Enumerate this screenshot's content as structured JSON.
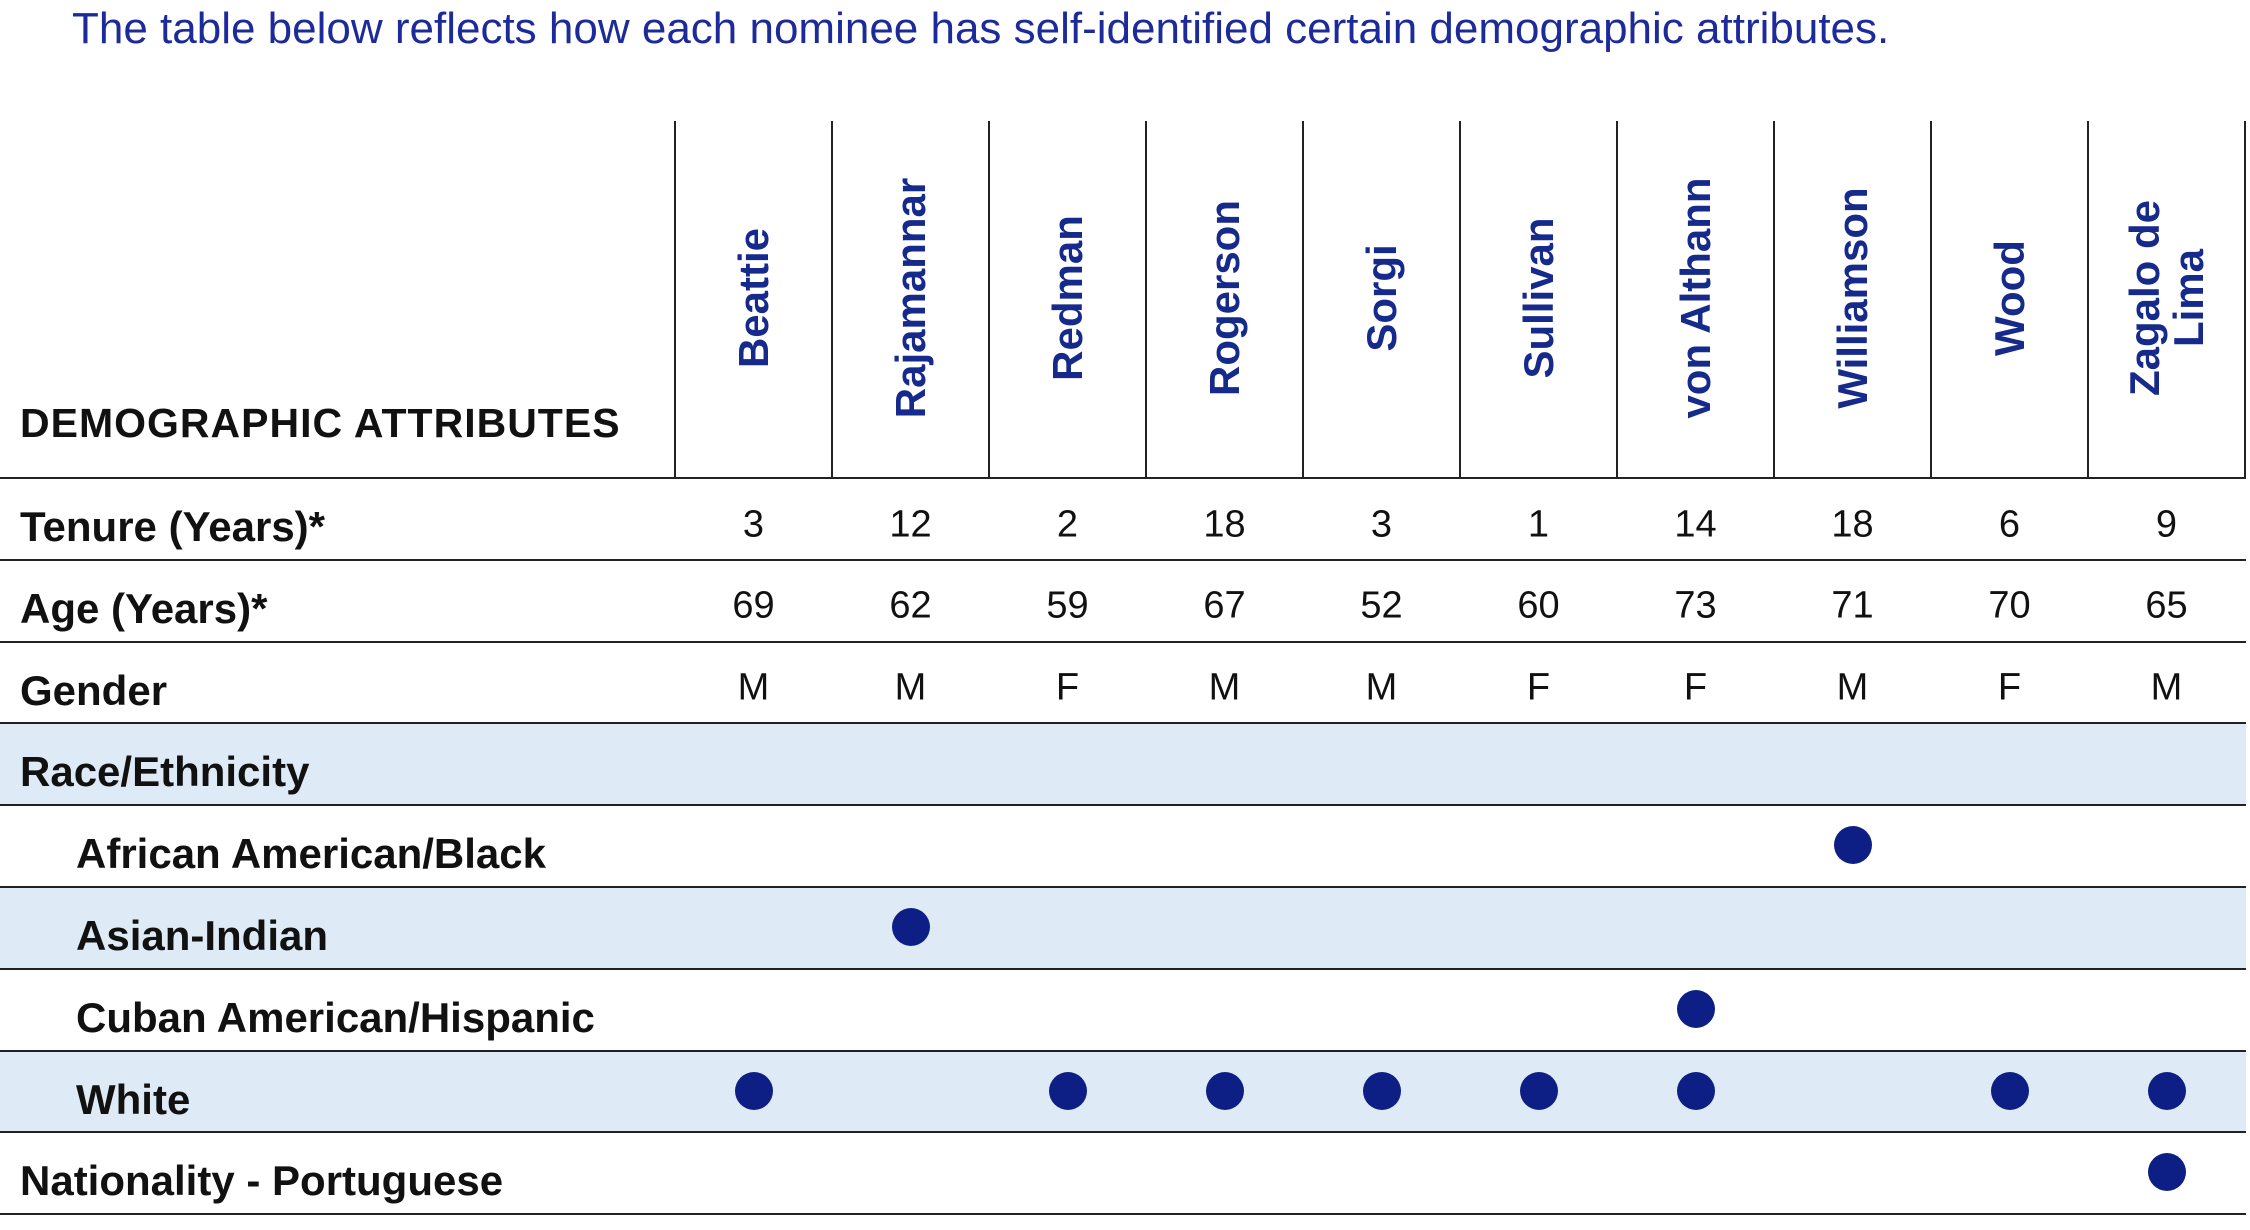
{
  "intro": "The table below reflects how each nominee has self-identified certain demographic attributes.",
  "table": {
    "header": "DEMOGRAPHIC ATTRIBUTES",
    "columns": [
      "Beattie",
      "Rajamannar",
      "Redman",
      "Rogerson",
      "Sorgi",
      "Sullivan",
      "von Althann",
      "Williamson",
      "Wood",
      "Zagalo de Lima"
    ],
    "rows": [
      {
        "label": "Tenure (Years)*",
        "values": [
          3,
          12,
          2,
          18,
          3,
          1,
          14,
          18,
          6,
          9
        ]
      },
      {
        "label": "Age (Years)*",
        "values": [
          69,
          62,
          59,
          67,
          52,
          60,
          73,
          71,
          70,
          65
        ]
      },
      {
        "label": "Gender",
        "values": [
          "M",
          "M",
          "F",
          "M",
          "M",
          "F",
          "F",
          "M",
          "F",
          "M"
        ]
      },
      {
        "label": "Race/Ethnicity",
        "items": [
          {
            "label": "African American/Black",
            "marks": [
              false,
              false,
              false,
              false,
              false,
              false,
              false,
              true,
              false,
              false
            ]
          },
          {
            "label": "Asian-Indian",
            "marks": [
              false,
              true,
              false,
              false,
              false,
              false,
              false,
              false,
              false,
              false
            ]
          },
          {
            "label": "Cuban American/Hispanic",
            "marks": [
              false,
              false,
              false,
              false,
              false,
              false,
              true,
              false,
              false,
              false
            ]
          },
          {
            "label": "White",
            "marks": [
              true,
              false,
              true,
              true,
              true,
              true,
              true,
              false,
              true,
              true
            ]
          }
        ]
      },
      {
        "label": "Nationality - Portuguese",
        "marks": [
          false,
          false,
          false,
          false,
          false,
          false,
          false,
          false,
          false,
          true
        ]
      }
    ]
  }
}
